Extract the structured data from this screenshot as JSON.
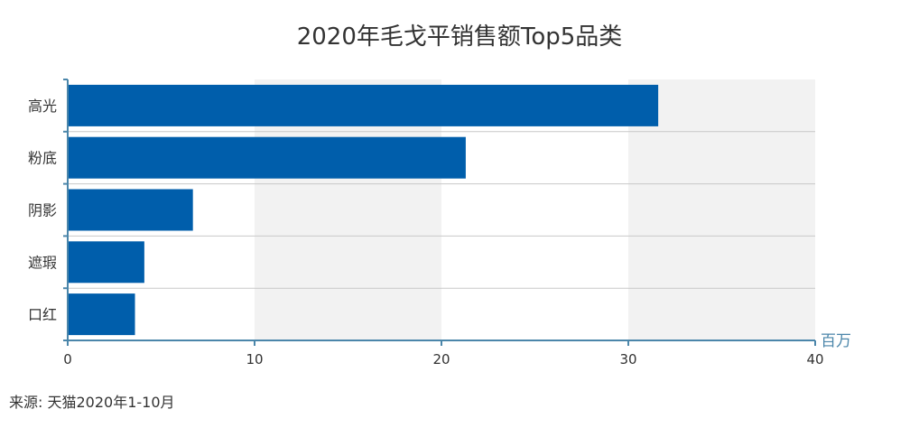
{
  "chart_data": {
    "type": "bar",
    "orientation": "horizontal",
    "title": "2020年毛戈平销售额Top5品类",
    "categories": [
      "高光",
      "粉底",
      "阴影",
      "遮瑕",
      "口红"
    ],
    "values": [
      31.6,
      21.3,
      6.7,
      4.1,
      3.6
    ],
    "xlim": [
      0,
      40
    ],
    "xticks": [
      0,
      10,
      20,
      30,
      40
    ],
    "unit_label": "百万",
    "grid": true,
    "legend": "none"
  },
  "colors": {
    "bar": "#005EAB",
    "axis": "#4B86AA",
    "band": "#F2F2F2",
    "separator": "#C8C8C8"
  },
  "source": "来源: 天猫2020年1-10月"
}
